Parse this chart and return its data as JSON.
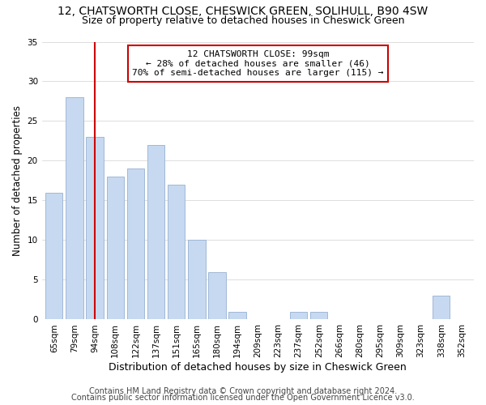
{
  "title1": "12, CHATSWORTH CLOSE, CHESWICK GREEN, SOLIHULL, B90 4SW",
  "title2": "Size of property relative to detached houses in Cheswick Green",
  "xlabel": "Distribution of detached houses by size in Cheswick Green",
  "ylabel": "Number of detached properties",
  "categories": [
    "65sqm",
    "79sqm",
    "94sqm",
    "108sqm",
    "122sqm",
    "137sqm",
    "151sqm",
    "165sqm",
    "180sqm",
    "194sqm",
    "209sqm",
    "223sqm",
    "237sqm",
    "252sqm",
    "266sqm",
    "280sqm",
    "295sqm",
    "309sqm",
    "323sqm",
    "338sqm",
    "352sqm"
  ],
  "values": [
    16,
    28,
    23,
    18,
    19,
    22,
    17,
    10,
    6,
    1,
    0,
    0,
    1,
    1,
    0,
    0,
    0,
    0,
    0,
    3,
    0
  ],
  "bar_color": "#c6d9f0",
  "bar_edge_color": "#a0b8d8",
  "vline_x_index": 2,
  "vline_color": "#cc0000",
  "annotation_line1": "12 CHATSWORTH CLOSE: 99sqm",
  "annotation_line2": "← 28% of detached houses are smaller (46)",
  "annotation_line3": "70% of semi-detached houses are larger (115) →",
  "annotation_box_color": "#ffffff",
  "annotation_box_edge_color": "#cc0000",
  "ylim": [
    0,
    35
  ],
  "yticks": [
    0,
    5,
    10,
    15,
    20,
    25,
    30,
    35
  ],
  "footer1": "Contains HM Land Registry data © Crown copyright and database right 2024.",
  "footer2": "Contains public sector information licensed under the Open Government Licence v3.0.",
  "background_color": "#ffffff",
  "title1_fontsize": 10,
  "title2_fontsize": 9,
  "xlabel_fontsize": 9,
  "ylabel_fontsize": 8.5,
  "tick_fontsize": 7.5,
  "annotation_fontsize": 8,
  "footer_fontsize": 7
}
